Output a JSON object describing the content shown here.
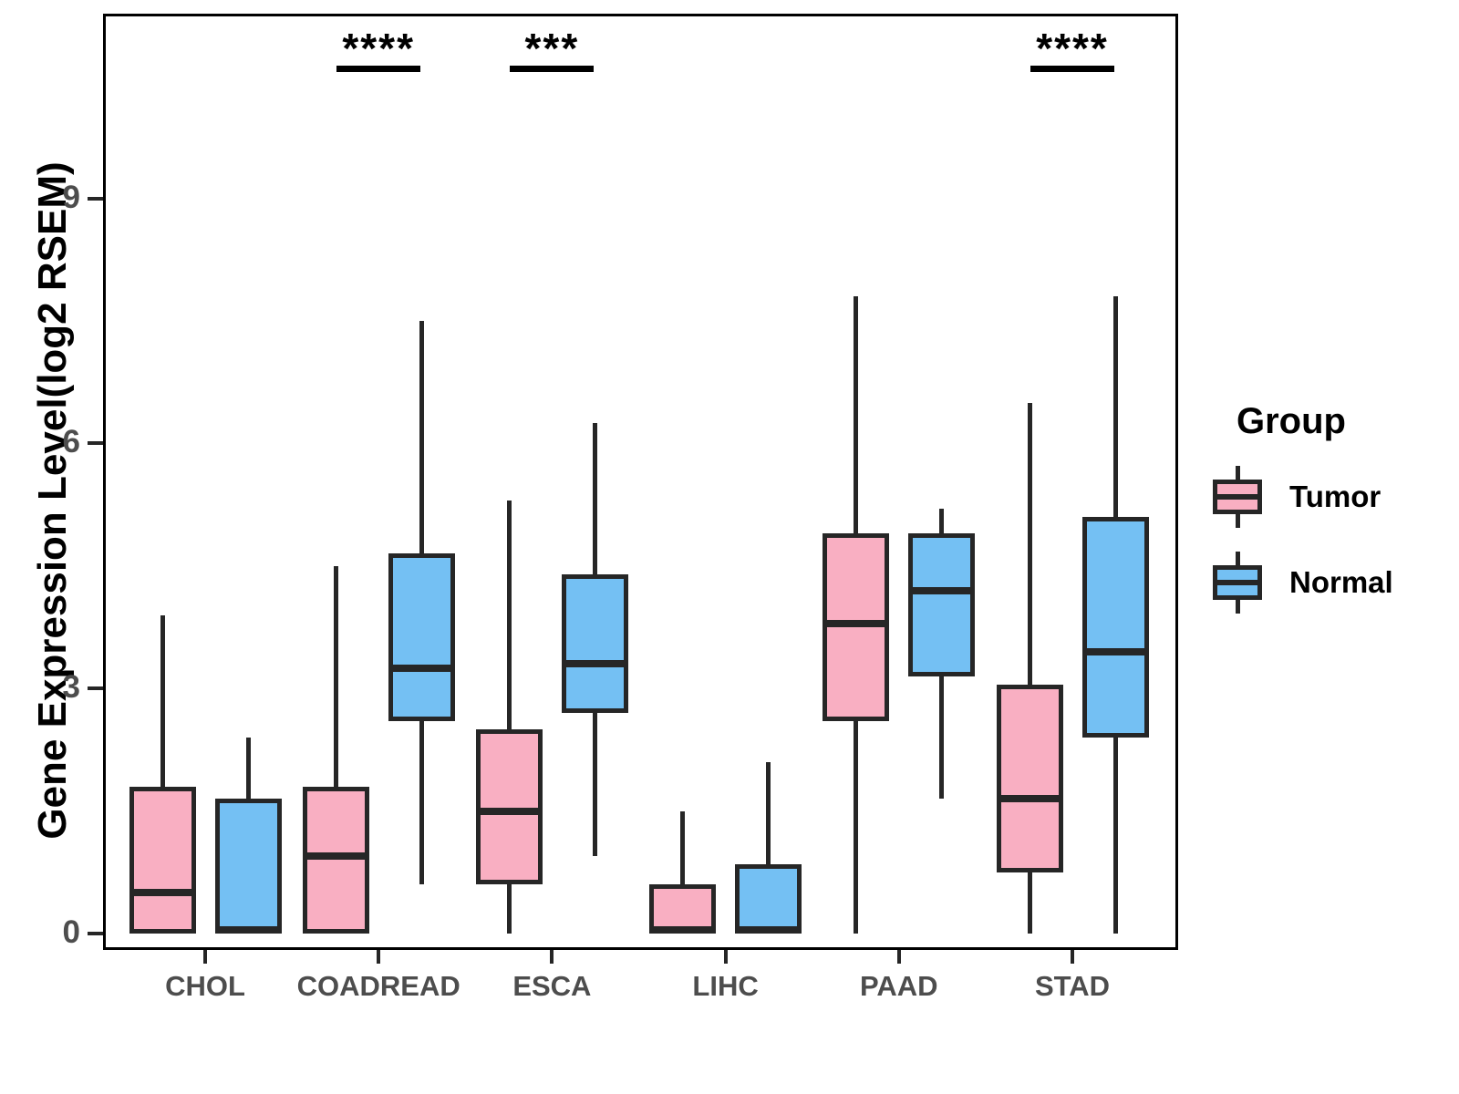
{
  "chart_data": {
    "type": "box",
    "title": "",
    "xlabel": "",
    "ylabel": "Gene Expression Level(log2 RSEM)",
    "ylim": [
      -0.2,
      11.3
    ],
    "yticks": [
      0,
      3,
      6,
      9
    ],
    "grid": "off",
    "legend_position": "right",
    "categories": [
      "CHOL",
      "COADREAD",
      "ESCA",
      "LIHC",
      "PAAD",
      "STAD"
    ],
    "legend": {
      "title": "Group",
      "entries": [
        {
          "label": "Tumor",
          "color": "#F9AFC2"
        },
        {
          "label": "Normal",
          "color": "#74C0F3"
        }
      ]
    },
    "series": [
      {
        "name": "Tumor",
        "color": "#F9AFC2",
        "boxes": [
          {
            "category": "CHOL",
            "min": 0,
            "q1": 0,
            "median": 0.5,
            "q3": 1.8,
            "max": 3.9
          },
          {
            "category": "COADREAD",
            "min": 0,
            "q1": 0,
            "median": 0.95,
            "q3": 1.8,
            "max": 4.5
          },
          {
            "category": "ESCA",
            "min": 0,
            "q1": 0.6,
            "median": 1.5,
            "q3": 2.5,
            "max": 5.3
          },
          {
            "category": "LIHC",
            "min": 0,
            "q1": 0,
            "median": 0.04,
            "q3": 0.6,
            "max": 1.5
          },
          {
            "category": "PAAD",
            "min": 0,
            "q1": 2.6,
            "median": 3.8,
            "q3": 4.9,
            "max": 7.8
          },
          {
            "category": "STAD",
            "min": 0,
            "q1": 0.75,
            "median": 1.65,
            "q3": 3.05,
            "max": 6.5
          }
        ]
      },
      {
        "name": "Normal",
        "color": "#74C0F3",
        "boxes": [
          {
            "category": "CHOL",
            "min": 0,
            "q1": 0,
            "median": 0.05,
            "q3": 1.65,
            "max": 2.4
          },
          {
            "category": "COADREAD",
            "min": 0.6,
            "q1": 2.6,
            "median": 3.25,
            "q3": 4.65,
            "max": 7.5
          },
          {
            "category": "ESCA",
            "min": 0.95,
            "q1": 2.7,
            "median": 3.3,
            "q3": 4.4,
            "max": 6.25
          },
          {
            "category": "LIHC",
            "min": 0,
            "q1": 0,
            "median": 0.04,
            "q3": 0.85,
            "max": 2.1
          },
          {
            "category": "PAAD",
            "min": 1.65,
            "q1": 3.15,
            "median": 4.2,
            "q3": 4.9,
            "max": 5.2
          },
          {
            "category": "STAD",
            "min": 0,
            "q1": 2.4,
            "median": 3.45,
            "q3": 5.1,
            "max": 7.8
          }
        ]
      }
    ],
    "annotations": [
      {
        "category": "COADREAD",
        "label": "****"
      },
      {
        "category": "ESCA",
        "label": "***"
      },
      {
        "category": "STAD",
        "label": "****"
      }
    ]
  }
}
